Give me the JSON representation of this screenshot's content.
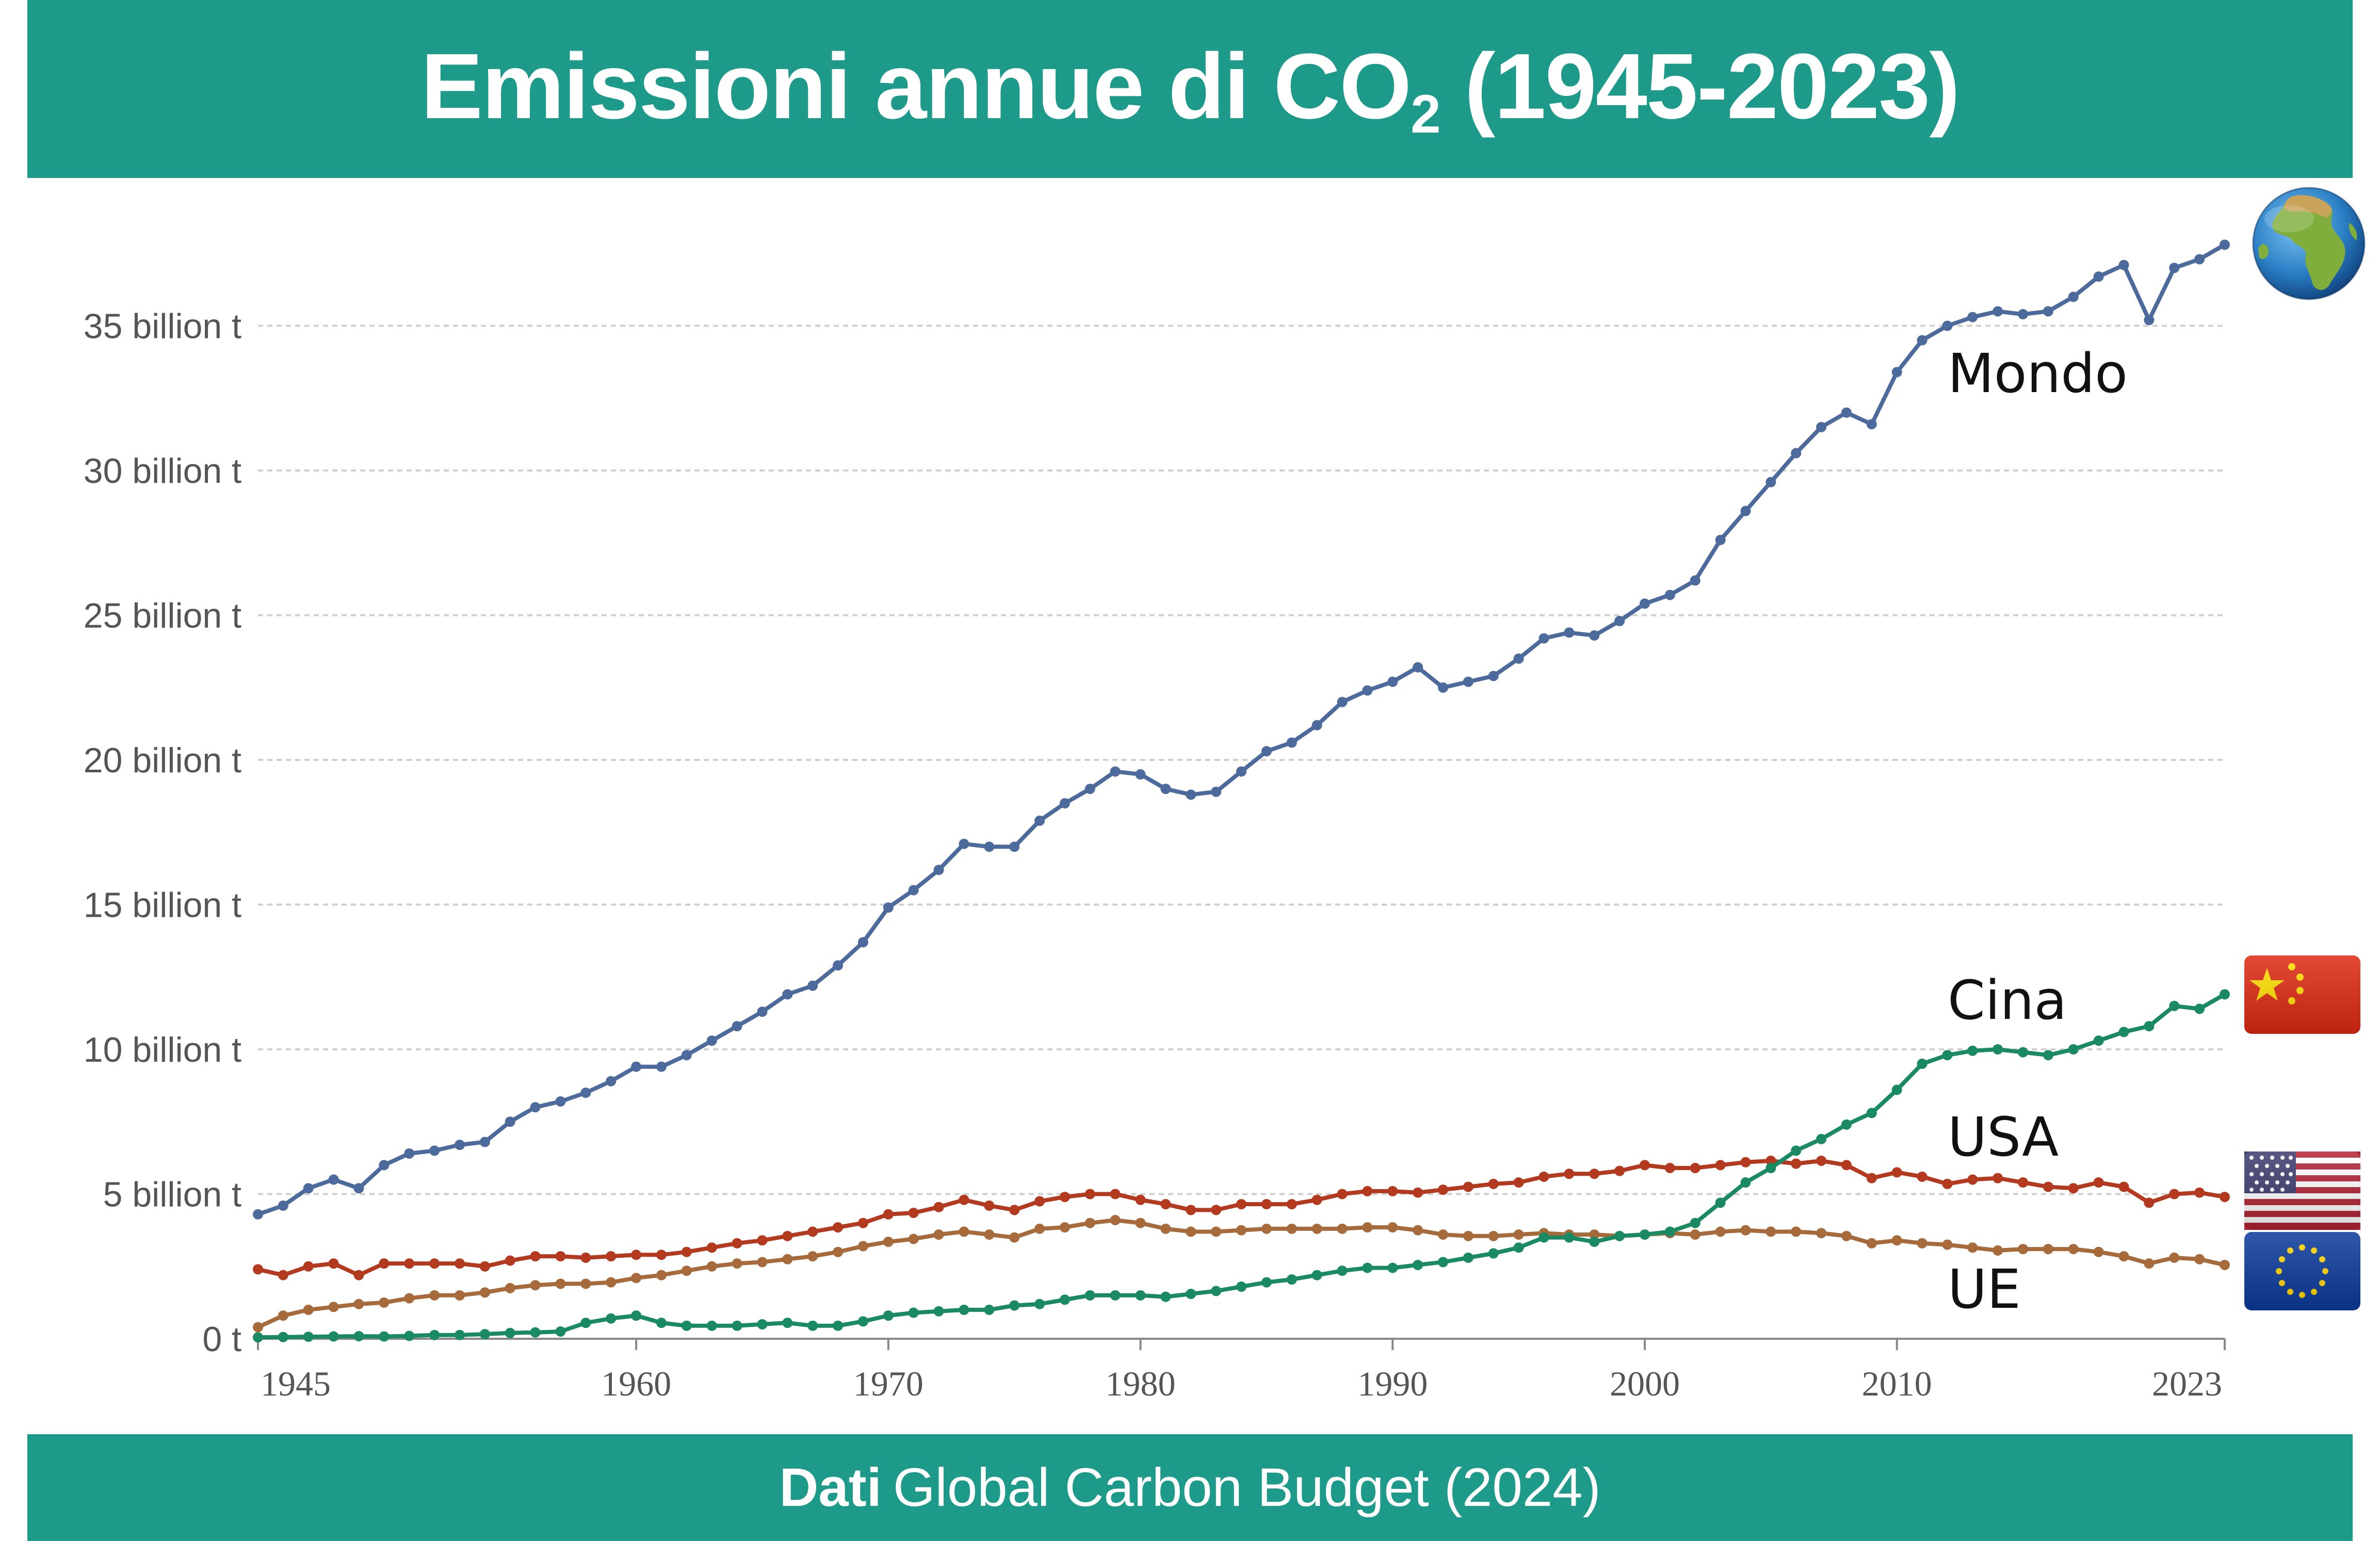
{
  "header": {
    "title_main": "Emissioni annue di CO",
    "title_sub": "2",
    "title_rest": " (1945-2023)"
  },
  "footer": {
    "label_bold": "Dati",
    "label_rest": "Global Carbon Budget (2024)"
  },
  "colors": {
    "banner": "#1d9a89",
    "world": "#4c6a9c",
    "china": "#1a8a63",
    "usa": "#b33a1e",
    "eu": "#a76a3b",
    "grid": "#cfcfcf",
    "axis_text": "#555555"
  },
  "chart_data": {
    "type": "line",
    "title": "Emissioni annue di CO₂ (1945-2023)",
    "xlabel": "",
    "ylabel": "",
    "xlim": [
      1945,
      2023
    ],
    "ylim": [
      0,
      38
    ],
    "y_ticks": [
      0,
      5,
      10,
      15,
      20,
      25,
      30,
      35
    ],
    "y_tick_labels": [
      "0 t",
      "5 billion t",
      "10 billion t",
      "15 billion t",
      "20 billion t",
      "25 billion t",
      "30 billion t",
      "35 billion t"
    ],
    "x_ticks": [
      1945,
      1960,
      1970,
      1980,
      1990,
      2000,
      2010,
      2023
    ],
    "x_tick_labels": [
      "1945",
      "1960",
      "1970",
      "1980",
      "1990",
      "2000",
      "2010",
      "2023"
    ],
    "x": [
      1945,
      1946,
      1947,
      1948,
      1949,
      1950,
      1951,
      1952,
      1953,
      1954,
      1955,
      1956,
      1957,
      1958,
      1959,
      1960,
      1961,
      1962,
      1963,
      1964,
      1965,
      1966,
      1967,
      1968,
      1969,
      1970,
      1971,
      1972,
      1973,
      1974,
      1975,
      1976,
      1977,
      1978,
      1979,
      1980,
      1981,
      1982,
      1983,
      1984,
      1985,
      1986,
      1987,
      1988,
      1989,
      1990,
      1991,
      1992,
      1993,
      1994,
      1995,
      1996,
      1997,
      1998,
      1999,
      2000,
      2001,
      2002,
      2003,
      2004,
      2005,
      2006,
      2007,
      2008,
      2009,
      2010,
      2011,
      2012,
      2013,
      2014,
      2015,
      2016,
      2017,
      2018,
      2019,
      2020,
      2021,
      2022,
      2023
    ],
    "series": [
      {
        "name": "Mondo",
        "icon": "globe-icon",
        "values": [
          4.3,
          4.6,
          5.2,
          5.5,
          5.2,
          6.0,
          6.4,
          6.5,
          6.7,
          6.8,
          7.5,
          8.0,
          8.2,
          8.5,
          8.9,
          9.4,
          9.4,
          9.8,
          10.3,
          10.8,
          11.3,
          11.9,
          12.2,
          12.9,
          13.7,
          14.9,
          15.5,
          16.2,
          17.1,
          17.0,
          17.0,
          17.9,
          18.5,
          19.0,
          19.6,
          19.5,
          19.0,
          18.8,
          18.9,
          19.6,
          20.3,
          20.6,
          21.2,
          22.0,
          22.4,
          22.7,
          23.2,
          22.5,
          22.7,
          22.9,
          23.5,
          24.2,
          24.4,
          24.3,
          24.8,
          25.4,
          25.7,
          26.2,
          27.6,
          28.6,
          29.6,
          30.6,
          31.5,
          32.0,
          31.6,
          33.4,
          34.5,
          35.0,
          35.3,
          35.5,
          35.4,
          35.5,
          36.0,
          36.7,
          37.1,
          35.2,
          37.0,
          37.3,
          37.8
        ]
      },
      {
        "name": "Cina",
        "icon": "china-flag-icon",
        "values": [
          0.05,
          0.06,
          0.07,
          0.08,
          0.09,
          0.08,
          0.1,
          0.13,
          0.13,
          0.16,
          0.2,
          0.22,
          0.25,
          0.55,
          0.7,
          0.8,
          0.55,
          0.45,
          0.45,
          0.45,
          0.5,
          0.55,
          0.45,
          0.45,
          0.6,
          0.8,
          0.9,
          0.95,
          1.0,
          1.0,
          1.15,
          1.2,
          1.35,
          1.5,
          1.5,
          1.5,
          1.45,
          1.55,
          1.65,
          1.8,
          1.95,
          2.05,
          2.2,
          2.35,
          2.45,
          2.45,
          2.55,
          2.65,
          2.8,
          2.95,
          3.15,
          3.5,
          3.5,
          3.35,
          3.55,
          3.6,
          3.7,
          4.0,
          4.7,
          5.4,
          5.9,
          6.5,
          6.9,
          7.4,
          7.8,
          8.6,
          9.5,
          9.8,
          9.95,
          10.0,
          9.9,
          9.8,
          10.0,
          10.3,
          10.6,
          10.8,
          11.5,
          11.4,
          11.9
        ]
      },
      {
        "name": "USA",
        "icon": "usa-flag-icon",
        "values": [
          2.4,
          2.2,
          2.5,
          2.6,
          2.2,
          2.6,
          2.6,
          2.6,
          2.6,
          2.5,
          2.7,
          2.85,
          2.85,
          2.8,
          2.85,
          2.9,
          2.9,
          3.0,
          3.15,
          3.3,
          3.4,
          3.55,
          3.7,
          3.85,
          4.0,
          4.3,
          4.35,
          4.55,
          4.8,
          4.6,
          4.45,
          4.75,
          4.9,
          5.0,
          5.0,
          4.8,
          4.65,
          4.45,
          4.45,
          4.65,
          4.65,
          4.65,
          4.8,
          5.0,
          5.1,
          5.1,
          5.05,
          5.15,
          5.25,
          5.35,
          5.4,
          5.6,
          5.7,
          5.7,
          5.8,
          6.0,
          5.9,
          5.9,
          6.0,
          6.1,
          6.15,
          6.05,
          6.15,
          6.0,
          5.55,
          5.75,
          5.6,
          5.35,
          5.5,
          5.55,
          5.4,
          5.25,
          5.2,
          5.4,
          5.25,
          4.7,
          5.0,
          5.05,
          4.9
        ]
      },
      {
        "name": "UE",
        "icon": "eu-flag-icon",
        "values": [
          0.4,
          0.8,
          1.0,
          1.1,
          1.2,
          1.25,
          1.4,
          1.5,
          1.5,
          1.6,
          1.75,
          1.85,
          1.9,
          1.9,
          1.95,
          2.1,
          2.2,
          2.35,
          2.5,
          2.6,
          2.65,
          2.75,
          2.85,
          3.0,
          3.2,
          3.35,
          3.45,
          3.6,
          3.7,
          3.6,
          3.5,
          3.8,
          3.85,
          4.0,
          4.1,
          4.0,
          3.8,
          3.7,
          3.7,
          3.75,
          3.8,
          3.8,
          3.8,
          3.8,
          3.85,
          3.85,
          3.75,
          3.6,
          3.55,
          3.55,
          3.6,
          3.65,
          3.6,
          3.6,
          3.55,
          3.6,
          3.65,
          3.6,
          3.7,
          3.75,
          3.7,
          3.7,
          3.65,
          3.55,
          3.3,
          3.4,
          3.3,
          3.25,
          3.15,
          3.05,
          3.1,
          3.1,
          3.1,
          3.0,
          2.85,
          2.6,
          2.8,
          2.75,
          2.55
        ]
      }
    ]
  }
}
